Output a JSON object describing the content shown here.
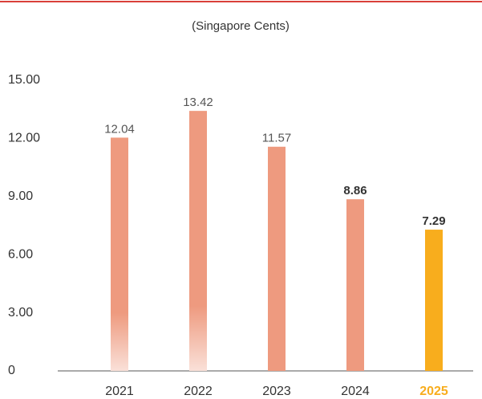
{
  "chart_data": {
    "type": "bar",
    "subtitle": "(Singapore Cents)",
    "categories": [
      "2021",
      "2022",
      "2023",
      "2024",
      "2025"
    ],
    "values": [
      12.04,
      13.42,
      11.57,
      8.86,
      7.29
    ],
    "colors": [
      "#ee9a7f",
      "#ee9a7f",
      "#ee9a7f",
      "#ee9a7f",
      "#f8ad1d"
    ],
    "ylim": [
      0,
      15
    ],
    "yticks": [
      0,
      {
        "value": 3,
        "label": "3.00"
      },
      {
        "value": 6,
        "label": "6.00"
      },
      {
        "value": 9,
        "label": "9.00"
      },
      {
        "value": 12,
        "label": "12.00"
      },
      {
        "value": 15,
        "label": "15.00"
      }
    ]
  }
}
